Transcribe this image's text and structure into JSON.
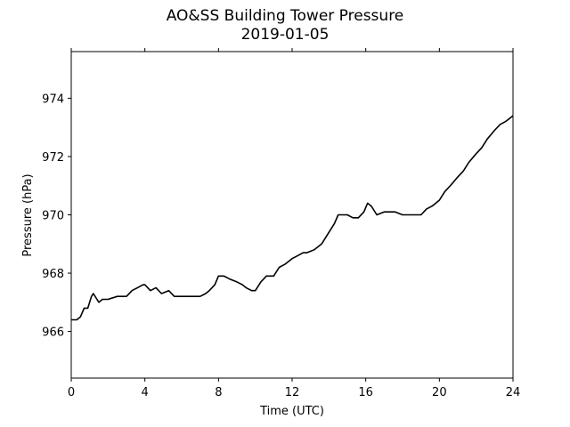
{
  "chart_data": {
    "type": "line",
    "title": "AO&SS Building Tower Pressure",
    "subtitle": "2019-01-05",
    "xlabel": "Time (UTC)",
    "ylabel": "Pressure (hPa)",
    "xlim": [
      0,
      24
    ],
    "ylim": [
      964.4,
      975.6
    ],
    "xticks": [
      "0",
      "4",
      "8",
      "12",
      "16",
      "20",
      "24"
    ],
    "yticks": [
      "966",
      "968",
      "970",
      "972",
      "974"
    ],
    "grid": false,
    "line_color": "#000000",
    "series": [
      {
        "x": [
          0,
          0.3,
          0.5,
          0.7,
          0.9,
          1.1,
          1.2,
          1.4,
          1.5,
          1.7,
          2.0,
          2.5,
          3.0,
          3.3,
          3.6,
          3.9,
          4.0,
          4.3,
          4.6,
          4.9,
          5.3,
          5.6,
          6.0,
          6.5,
          7.0,
          7.3,
          7.5,
          7.8,
          8.0,
          8.3,
          8.6,
          9.0,
          9.3,
          9.5,
          9.8,
          10.0,
          10.3,
          10.6,
          11.0,
          11.3,
          11.6,
          12.0,
          12.3,
          12.6,
          12.8,
          13.2,
          13.6,
          14.0,
          14.3,
          14.5,
          14.8,
          15.0,
          15.3,
          15.6,
          15.9,
          16.1,
          16.3,
          16.6,
          17.0,
          17.3,
          17.6,
          18.0,
          18.3,
          18.6,
          19.0,
          19.3,
          19.6,
          20.0,
          20.3,
          20.6,
          21.0,
          21.3,
          21.6,
          22.0,
          22.3,
          22.6,
          23.0,
          23.3,
          23.6,
          24.0
        ],
        "y": [
          966.4,
          966.4,
          966.5,
          966.8,
          966.8,
          967.2,
          967.3,
          967.1,
          967.0,
          967.1,
          967.1,
          967.2,
          967.2,
          967.4,
          967.5,
          967.6,
          967.6,
          967.4,
          967.5,
          967.3,
          967.4,
          967.2,
          967.2,
          967.2,
          967.2,
          967.3,
          967.4,
          967.6,
          967.9,
          967.9,
          967.8,
          967.7,
          967.6,
          967.5,
          967.4,
          967.4,
          967.7,
          967.9,
          967.9,
          968.2,
          968.3,
          968.5,
          968.6,
          968.7,
          968.7,
          968.8,
          969.0,
          969.4,
          969.7,
          970.0,
          970.0,
          970.0,
          969.9,
          969.9,
          970.1,
          970.4,
          970.3,
          970.0,
          970.1,
          970.1,
          970.1,
          970.0,
          970.0,
          970.0,
          970.0,
          970.2,
          970.3,
          970.5,
          970.8,
          971.0,
          971.3,
          971.5,
          971.8,
          972.1,
          972.3,
          972.6,
          972.9,
          973.1,
          973.2,
          973.4
        ]
      }
    ]
  }
}
